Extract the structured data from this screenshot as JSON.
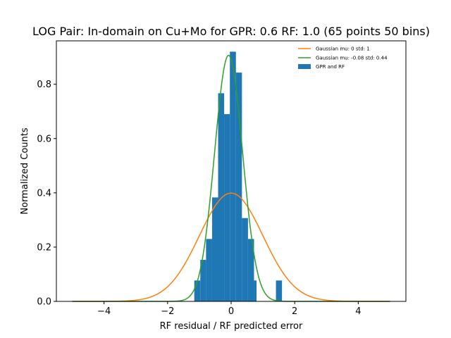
{
  "chart_data": {
    "type": "bar",
    "title": "LOG Pair: In-domain on Cu+Mo for GPR: 0.6 RF: 1.0 (65 points 50 bins)",
    "xlabel": "RF residual / RF predicted error",
    "ylabel": "Normalized Counts",
    "xlim": [
      -5.5,
      5.5
    ],
    "ylim": [
      0,
      0.96
    ],
    "x_ticks": [
      -4,
      -2,
      0,
      2,
      4
    ],
    "y_ticks": [
      0.0,
      0.2,
      0.4,
      0.6,
      0.8
    ],
    "x_tick_labels": [
      "−4",
      "−2",
      "0",
      "2",
      "4"
    ],
    "y_tick_labels": [
      "0.0",
      "0.2",
      "0.4",
      "0.6",
      "0.8"
    ],
    "grid": false,
    "legend_position": "top-right",
    "histogram": {
      "name": "GPR and RF",
      "color": "#1f77b4",
      "bins": [
        {
          "x0": -1.16,
          "x1": -0.97,
          "value": 0.077
        },
        {
          "x0": -0.97,
          "x1": -0.79,
          "value": 0.153
        },
        {
          "x0": -0.79,
          "x1": -0.6,
          "value": 0.23
        },
        {
          "x0": -0.6,
          "x1": -0.41,
          "value": 0.383
        },
        {
          "x0": -0.41,
          "x1": -0.22,
          "value": 0.767
        },
        {
          "x0": -0.22,
          "x1": -0.04,
          "value": 0.69
        },
        {
          "x0": -0.04,
          "x1": 0.15,
          "value": 0.92
        },
        {
          "x0": 0.15,
          "x1": 0.34,
          "value": 0.843
        },
        {
          "x0": 0.34,
          "x1": 0.53,
          "value": 0.307
        },
        {
          "x0": 0.53,
          "x1": 0.72,
          "value": 0.23
        },
        {
          "x0": 0.72,
          "x1": 0.8,
          "value": 0.077
        },
        {
          "x0": 1.41,
          "x1": 1.6,
          "value": 0.077
        }
      ]
    },
    "series": [
      {
        "name": "Gaussian mu: 0 std: 1",
        "type": "line",
        "color": "#ff7f0e",
        "mu": 0,
        "std": 1,
        "x_range": [
          -5,
          5
        ]
      },
      {
        "name": "Gaussian mu: -0.08 std: 0.44",
        "type": "line",
        "color": "#2ca02c",
        "mu": -0.08,
        "std": 0.44,
        "x_range": [
          -5,
          5
        ]
      }
    ]
  }
}
